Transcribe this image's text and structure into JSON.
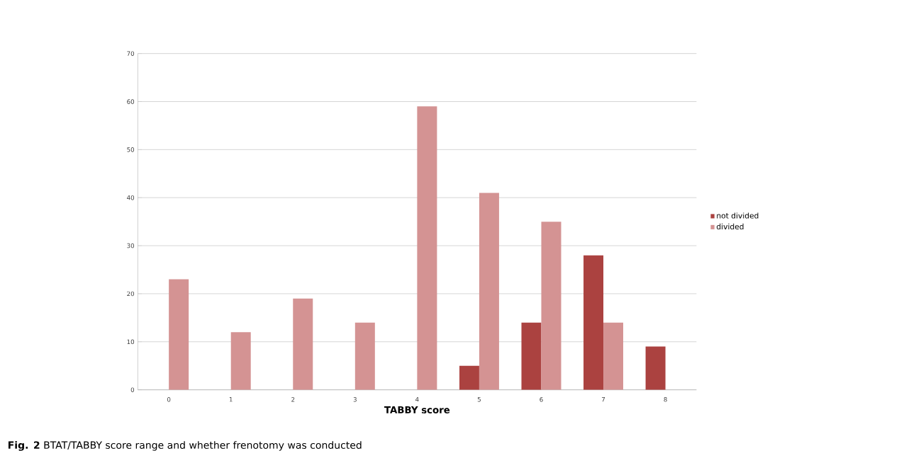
{
  "chart_data": {
    "type": "bar",
    "xlabel": "TABBY score",
    "categories": [
      "0",
      "1",
      "2",
      "3",
      "4",
      "5",
      "6",
      "7",
      "8"
    ],
    "series": [
      {
        "name": "not divided",
        "color": "#ab4240",
        "values": [
          null,
          null,
          null,
          null,
          null,
          5,
          14,
          28,
          9
        ]
      },
      {
        "name": "divided",
        "color": "#d49393",
        "values": [
          23,
          12,
          19,
          14,
          59,
          41,
          35,
          14,
          null
        ]
      }
    ],
    "ylim": [
      0,
      70
    ],
    "yticks": [
      0,
      10,
      20,
      30,
      40,
      50,
      60,
      70
    ],
    "grid": "y",
    "legend": "right",
    "annotations": [
      "**Fig. 2** BTAT/TABBY score range and whether frenotomy was conducted"
    ]
  }
}
